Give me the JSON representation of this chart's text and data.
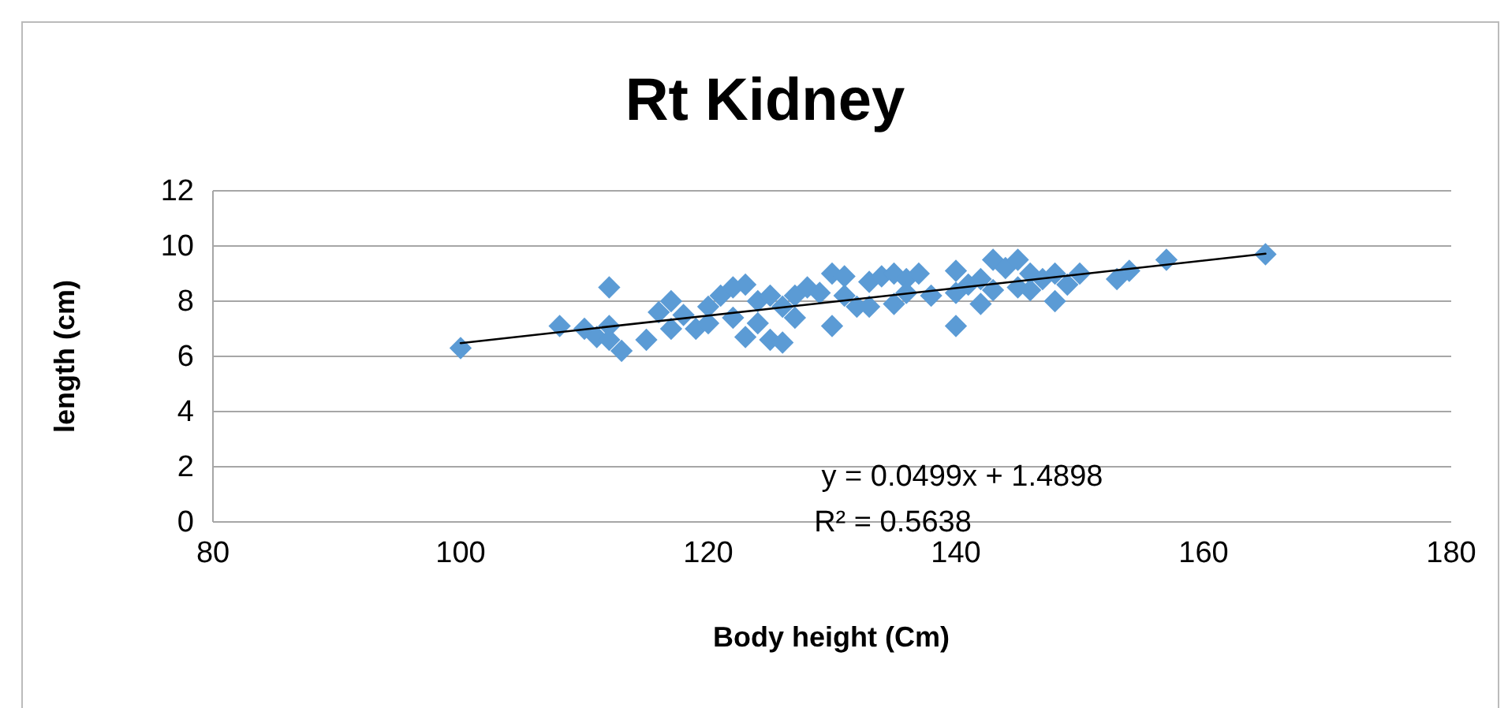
{
  "chart_data": {
    "type": "scatter",
    "title": "Rt Kidney",
    "xlabel": "Body height (Cm)",
    "ylabel": "length (cm)",
    "xlim": [
      80,
      180
    ],
    "xticks": [
      80,
      100,
      120,
      140,
      160,
      180
    ],
    "ylim": [
      0,
      12
    ],
    "yticks": [
      0,
      2,
      4,
      6,
      8,
      10,
      12
    ],
    "grid": "y",
    "annotations": [
      "y = 0.0499x + 1.4898",
      "R² = 0.5638"
    ],
    "series": [
      {
        "type": "scatter",
        "marker": "diamond",
        "color": "#5b9bd5",
        "x": [
          100,
          108,
          110,
          111,
          112,
          112,
          113,
          112,
          115,
          116,
          117,
          117,
          118,
          119,
          120,
          120,
          121,
          122,
          122,
          123,
          123,
          124,
          124,
          125,
          125,
          126,
          126,
          127,
          127,
          128,
          129,
          130,
          130,
          131,
          131,
          132,
          133,
          133,
          134,
          135,
          135,
          136,
          136,
          137,
          138,
          140,
          140,
          140,
          141,
          142,
          142,
          143,
          143,
          144,
          145,
          145,
          146,
          146,
          147,
          148,
          148,
          149,
          150,
          153,
          154,
          157,
          165
        ],
        "values": [
          6.3,
          7.1,
          7.0,
          6.7,
          8.5,
          7.1,
          6.2,
          6.6,
          6.6,
          7.6,
          7.0,
          8.0,
          7.5,
          7.0,
          7.8,
          7.2,
          8.2,
          8.5,
          7.4,
          8.6,
          6.7,
          8.0,
          7.2,
          8.2,
          6.6,
          6.5,
          7.8,
          8.2,
          7.4,
          8.5,
          8.3,
          9.0,
          7.1,
          8.9,
          8.2,
          7.8,
          8.7,
          7.8,
          8.9,
          9.0,
          7.9,
          8.8,
          8.3,
          9.0,
          8.2,
          9.1,
          7.1,
          8.3,
          8.6,
          8.8,
          7.9,
          9.5,
          8.4,
          9.2,
          9.5,
          8.5,
          9.0,
          8.4,
          8.8,
          8.0,
          9.0,
          8.6,
          9.0,
          8.8,
          9.1,
          9.5,
          9.7
        ]
      },
      {
        "type": "line",
        "marker": "none",
        "color": "#000000",
        "x": [
          100,
          165
        ],
        "values": [
          6.48,
          9.72
        ]
      }
    ]
  }
}
